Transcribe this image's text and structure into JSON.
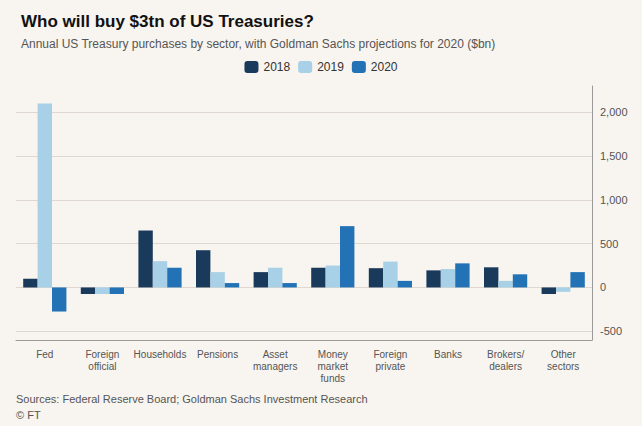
{
  "chart_data": {
    "type": "bar",
    "title": "Who will buy $3tn of US Treasuries?",
    "subtitle": "Annual US Treasury purchases by sector, with Goldman Sachs projections for 2020 ($bn)",
    "annotations": [
      "Sources: Federal Reserve Board; Goldman Sachs Investment Research",
      "© FT"
    ],
    "categories": [
      "Fed",
      "Foreign\nofficial",
      "Households",
      "Pensions",
      "Asset\nmanagers",
      "Money\nmarket\nfunds",
      "Foreign\nprivate",
      "Banks",
      "Brokers/\ndealers",
      "Other\nsectors"
    ],
    "series": [
      {
        "name": "2018",
        "color": "#1a3a5c",
        "values": [
          100,
          -75,
          650,
          425,
          175,
          225,
          220,
          195,
          230,
          -75
        ]
      },
      {
        "name": "2019",
        "color": "#a8d0e6",
        "values": [
          2100,
          -75,
          300,
          175,
          225,
          250,
          295,
          210,
          75,
          -50
        ]
      },
      {
        "name": "2020",
        "color": "#2272b5",
        "values": [
          -275,
          -75,
          225,
          50,
          50,
          700,
          75,
          275,
          150,
          175
        ]
      }
    ],
    "ylim": [
      -600,
      2300
    ],
    "yticks": [
      -500,
      0,
      500,
      {
        "value": 1000,
        "label": "1,000"
      },
      {
        "value": 1500,
        "label": "1,500"
      },
      {
        "value": 2000,
        "label": "2,000"
      }
    ],
    "grid": true,
    "legend": "top"
  }
}
